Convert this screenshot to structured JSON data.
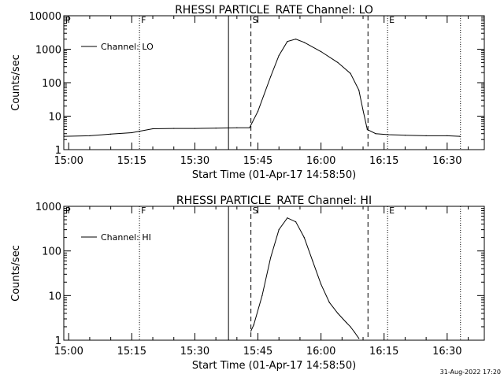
{
  "footer": {
    "timestamp": "31-Aug-2022 17:20"
  },
  "chart_data": [
    {
      "type": "line",
      "title": "RHESSI PARTICLE_RATE Channel: LO",
      "xlabel": "Start Time (01-Apr-17 14:58:50)",
      "ylabel": "Counts/sec",
      "yscale": "log",
      "xlim": [
        "14:58:50",
        "16:38:50"
      ],
      "ylim": [
        1,
        10000
      ],
      "x_ticks": [
        "15:00",
        "15:15",
        "15:30",
        "15:45",
        "16:00",
        "16:15",
        "16:30"
      ],
      "y_ticks": [
        "1",
        "10",
        "100",
        "1000",
        "10000"
      ],
      "legend": {
        "position": "top-left",
        "entries": [
          "Channel: LO"
        ]
      },
      "grid": false,
      "markers": [
        {
          "label": "P",
          "time": "14:58:50",
          "style": "dotted"
        },
        {
          "label": "F",
          "time": "15:16:50",
          "style": "dotted"
        },
        {
          "label": "",
          "time": "15:38:00",
          "style": "solid"
        },
        {
          "label": "S",
          "time": "15:43:20",
          "style": "dashed"
        },
        {
          "label": "",
          "time": "16:11:10",
          "style": "dashed"
        },
        {
          "label": "E",
          "time": "16:15:50",
          "style": "dotted"
        },
        {
          "label": "",
          "time": "16:33:10",
          "style": "dotted"
        }
      ],
      "series": [
        {
          "name": "Channel: LO",
          "x": [
            "14:59:00",
            "15:05:00",
            "15:10:00",
            "15:15:00",
            "15:20:00",
            "15:25:00",
            "15:30:00",
            "15:35:00",
            "15:40:00",
            "15:43:00",
            "15:45:00",
            "15:48:00",
            "15:50:00",
            "15:52:00",
            "15:54:00",
            "15:56:00",
            "16:00:00",
            "16:04:00",
            "16:07:00",
            "16:09:00",
            "16:10:00",
            "16:11:00",
            "16:13:00",
            "16:16:00",
            "16:20:00",
            "16:25:00",
            "16:30:00",
            "16:33:00"
          ],
          "values": [
            2.5,
            2.6,
            2.9,
            3.2,
            4.2,
            4.3,
            4.3,
            4.4,
            4.5,
            4.5,
            14,
            150,
            650,
            1700,
            2000,
            1600,
            850,
            400,
            190,
            60,
            15,
            4,
            3,
            2.8,
            2.7,
            2.6,
            2.6,
            2.5
          ]
        }
      ]
    },
    {
      "type": "line",
      "title": "RHESSI PARTICLE_RATE Channel: HI",
      "xlabel": "Start Time (01-Apr-17 14:58:50)",
      "ylabel": "Counts/sec",
      "yscale": "log",
      "xlim": [
        "14:58:50",
        "16:38:50"
      ],
      "ylim": [
        1,
        1000
      ],
      "x_ticks": [
        "15:00",
        "15:15",
        "15:30",
        "15:45",
        "16:00",
        "16:15",
        "16:30"
      ],
      "y_ticks": [
        "1",
        "10",
        "100",
        "1000"
      ],
      "legend": {
        "position": "top-left",
        "entries": [
          "Channel: HI"
        ]
      },
      "grid": false,
      "markers": [
        {
          "label": "P",
          "time": "14:58:50",
          "style": "dotted"
        },
        {
          "label": "F",
          "time": "15:16:50",
          "style": "dotted"
        },
        {
          "label": "",
          "time": "15:38:00",
          "style": "solid"
        },
        {
          "label": "S",
          "time": "15:43:20",
          "style": "dashed"
        },
        {
          "label": "",
          "time": "16:11:10",
          "style": "dashed"
        },
        {
          "label": "E",
          "time": "16:15:50",
          "style": "dotted"
        },
        {
          "label": "",
          "time": "16:33:10",
          "style": "dotted"
        }
      ],
      "series": [
        {
          "name": "Channel: HI",
          "x": [
            "15:43:20",
            "15:44:00",
            "15:46:00",
            "15:48:00",
            "15:50:00",
            "15:52:00",
            "15:54:00",
            "15:56:00",
            "15:58:00",
            "16:00:00",
            "16:02:00",
            "16:04:00",
            "16:06:00",
            "16:07:00",
            "16:08:00",
            "16:09:00"
          ],
          "values": [
            1.6,
            2.2,
            10,
            70,
            300,
            550,
            450,
            200,
            60,
            18,
            7,
            4,
            2.5,
            2,
            1.5,
            1.1
          ]
        }
      ]
    }
  ]
}
